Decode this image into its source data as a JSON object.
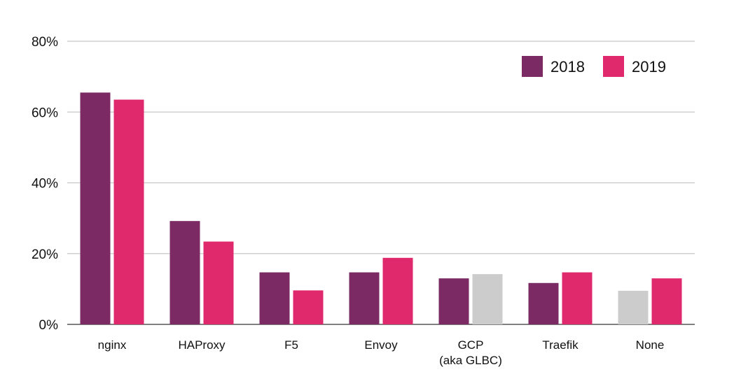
{
  "chart_data": {
    "type": "bar",
    "categories": [
      [
        "nginx"
      ],
      [
        "HAProxy"
      ],
      [
        "F5"
      ],
      [
        "Envoy"
      ],
      [
        "GCP",
        "(aka GLBC)"
      ],
      [
        "Traefik"
      ],
      [
        "None"
      ]
    ],
    "series": [
      {
        "name": "2018",
        "color": "#7b2a63",
        "values": [
          65.5,
          29.2,
          14.7,
          14.7,
          13.0,
          11.7,
          9.5
        ],
        "bar_colors": [
          "#7b2a63",
          "#7b2a63",
          "#7b2a63",
          "#7b2a63",
          "#7b2a63",
          "#7b2a63",
          "#cccccc"
        ]
      },
      {
        "name": "2019",
        "color": "#e0296c",
        "values": [
          63.5,
          23.4,
          9.6,
          18.8,
          14.2,
          14.7,
          13.0
        ],
        "bar_colors": [
          "#e0296c",
          "#e0296c",
          "#e0296c",
          "#e0296c",
          "#cccccc",
          "#e0296c",
          "#e0296c"
        ]
      }
    ],
    "yticks": [
      "0%",
      "20%",
      "40%",
      "60%",
      "80%"
    ],
    "ytick_values": [
      0,
      20,
      40,
      60,
      80
    ],
    "ylim": [
      0,
      80
    ],
    "grid": true,
    "legend": "top-right",
    "title": "",
    "xlabel": "",
    "ylabel": ""
  }
}
